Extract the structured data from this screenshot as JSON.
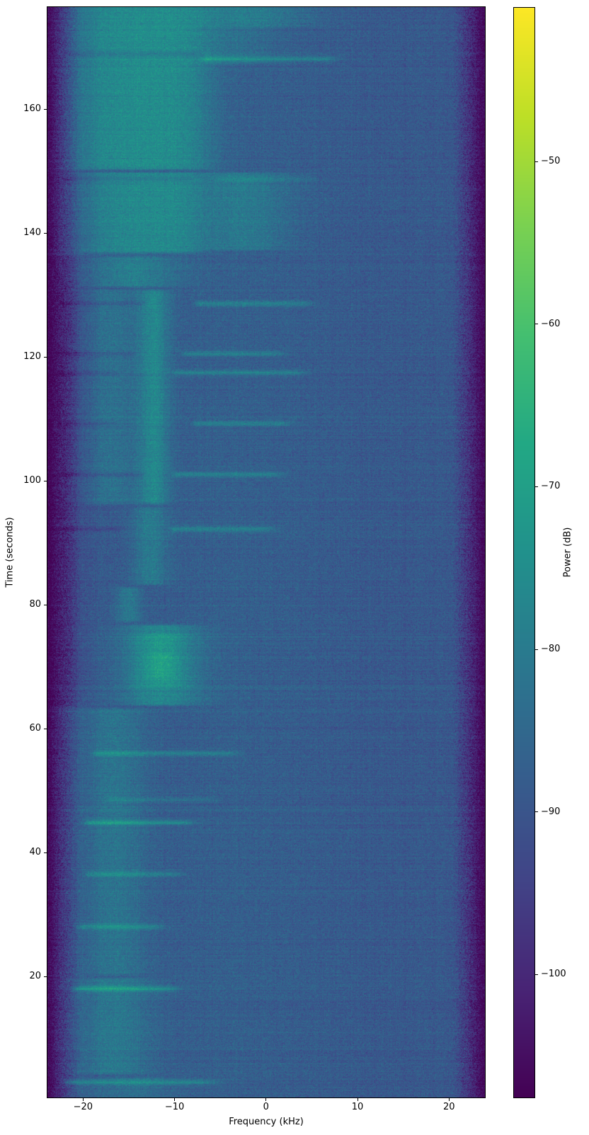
{
  "chart_data": {
    "type": "heatmap",
    "title": "",
    "xlabel": "Frequency (kHz)",
    "ylabel": "Time (seconds)",
    "colorbar_label": "Power (dB)",
    "x_range_khz": [
      -23.9,
      24.0
    ],
    "y_range_seconds": [
      0.3,
      176.6
    ],
    "color_range_db": [
      -107.6,
      -40.5
    ],
    "grid": false,
    "x_ticks": [
      {
        "v": -20,
        "label": "−20"
      },
      {
        "v": -10,
        "label": "−10"
      },
      {
        "v": 0,
        "label": "0"
      },
      {
        "v": 10,
        "label": "10"
      },
      {
        "v": 20,
        "label": "20"
      }
    ],
    "y_ticks": [
      {
        "v": 160,
        "label": "160"
      },
      {
        "v": 140,
        "label": "140"
      },
      {
        "v": 120,
        "label": "120"
      },
      {
        "v": 100,
        "label": "100"
      },
      {
        "v": 80,
        "label": "80"
      },
      {
        "v": 60,
        "label": "60"
      },
      {
        "v": 40,
        "label": "40"
      },
      {
        "v": 20,
        "label": "20"
      }
    ],
    "colorbar_ticks": [
      {
        "v": -50,
        "label": "−50"
      },
      {
        "v": -60,
        "label": "−60"
      },
      {
        "v": -70,
        "label": "−70"
      },
      {
        "v": -80,
        "label": "−80"
      },
      {
        "v": -90,
        "label": "−90"
      },
      {
        "v": -100,
        "label": "−100"
      }
    ],
    "colormap": {
      "name": "viridis",
      "stops": [
        [
          68,
          1,
          84
        ],
        [
          72,
          36,
          117
        ],
        [
          65,
          68,
          135
        ],
        [
          53,
          95,
          141
        ],
        [
          42,
          120,
          142
        ],
        [
          33,
          145,
          140
        ],
        [
          34,
          168,
          132
        ],
        [
          68,
          191,
          112
        ],
        [
          122,
          209,
          81
        ],
        [
          189,
          223,
          38
        ],
        [
          253,
          231,
          37
        ]
      ]
    },
    "background_model": {
      "base_db": -89,
      "bump": {
        "fc": -3,
        "fs": 11,
        "amp": 1.6
      },
      "edge": {
        "start_khz": 20.2,
        "width_khz": 3.4,
        "depth_db": 17
      },
      "noise_sigma": 2.6,
      "row_noise": 0.8,
      "col_noise": 0.45,
      "seed": 42
    },
    "bands": [
      {
        "t": [
          150,
          177
        ],
        "fc": -13.5,
        "fs": 7.5,
        "amp": 13,
        "p": 4
      },
      {
        "t": [
          167,
          177
        ],
        "fc": -3,
        "fs": 4,
        "amp": 4,
        "p": 2
      },
      {
        "t": [
          173,
          177
        ],
        "fc": 0,
        "fs": 6,
        "amp": 5,
        "p": 2
      },
      {
        "t": [
          136.5,
          150
        ],
        "fc": -13.5,
        "fs": 6.5,
        "amp": 12,
        "p": 4
      },
      {
        "t": [
          137,
          150
        ],
        "fc": -2.5,
        "fs": 5,
        "amp": 7,
        "p": 2
      },
      {
        "t": [
          131,
          136.5
        ],
        "fc": -14.5,
        "fs": 5,
        "amp": 9,
        "p": 2
      },
      {
        "t": [
          96,
          131
        ],
        "fc": -12.2,
        "fs": 1.7,
        "amp": 11,
        "p": 2
      },
      {
        "t": [
          96,
          131
        ],
        "fc": -16.8,
        "fs": 2.8,
        "amp": 6,
        "p": 2
      },
      {
        "t": [
          83,
          96
        ],
        "fc": -12.6,
        "fs": 1.9,
        "amp": 8,
        "p": 2
      },
      {
        "t": [
          77,
          83
        ],
        "fc": -15,
        "fs": 1.4,
        "amp": 8,
        "p": 2
      },
      {
        "t": [
          63.5,
          77
        ],
        "fc": -11.5,
        "fs": 4.4,
        "amp": 11,
        "p": 2
      },
      {
        "t": [
          66.5,
          75.5
        ],
        "fc": -11.5,
        "fs": 2.9,
        "amp": 5,
        "p": 2
      },
      {
        "t": [
          68,
          72.5
        ],
        "fc": -11.3,
        "fs": 1.6,
        "amp": 3,
        "p": 2
      },
      {
        "t": [
          20,
          63.5
        ],
        "fc": -16.5,
        "fs": 3.3,
        "amp": 7,
        "p": 2
      },
      {
        "t": [
          4,
          20
        ],
        "fc": -16.5,
        "fs": 3.9,
        "amp": 8,
        "p": 2
      },
      {
        "t": [
          0,
          4
        ],
        "fc": -15,
        "fs": 4.5,
        "amp": 5,
        "p": 2
      },
      {
        "t": [
          63.5,
          136.5
        ],
        "fc": -21.5,
        "fs": 2.0,
        "amp": -4,
        "p": 2
      }
    ],
    "events": [
      {
        "t": 168.9,
        "f": [
          -6.5,
          6.3
        ],
        "amp": 0,
        "dark": [
          -21,
          -7.5
        ],
        "damp": 5
      },
      {
        "t": 168.1,
        "f": [
          -6.5,
          6.3
        ],
        "amp": 9
      },
      {
        "t": 148.7,
        "f": [
          -5,
          4
        ],
        "amp": 4,
        "dark": [
          -21.5,
          -9
        ],
        "damp": 3.5
      },
      {
        "t": 128.6,
        "f": [
          -7.2,
          3.6
        ],
        "amp": 9,
        "dark": [
          -22,
          -14
        ],
        "damp": 4
      },
      {
        "t": 120.5,
        "f": [
          -8.6,
          0.5
        ],
        "amp": 8,
        "dark": [
          -22,
          -15
        ],
        "damp": 4
      },
      {
        "t": 117.4,
        "f": [
          -9.6,
          3.0
        ],
        "amp": 9,
        "dark": [
          -22,
          -16.8
        ],
        "damp": 4
      },
      {
        "t": 109.2,
        "f": [
          -7.5,
          1.2
        ],
        "amp": 8,
        "dark": [
          -22,
          -16.8
        ],
        "damp": 4
      },
      {
        "t": 101.0,
        "f": [
          -9.6,
          0.5
        ],
        "amp": 9,
        "dark": [
          -22,
          -14
        ],
        "damp": 4
      },
      {
        "t": 92.2,
        "f": [
          -9.9,
          -0.4
        ],
        "amp": 9,
        "dark": [
          -22,
          -16.5
        ],
        "damp": 4
      },
      {
        "t": 56.0,
        "f": [
          -18.4,
          -4.4
        ],
        "amp": 9
      },
      {
        "t": 48.5,
        "f": [
          -17,
          -7
        ],
        "amp": 5
      },
      {
        "t": 44.8,
        "f": [
          -19.2,
          -9.4
        ],
        "amp": 11
      },
      {
        "t": 36.5,
        "f": [
          -19.2,
          -10.5
        ],
        "amp": 8
      },
      {
        "t": 28.0,
        "f": [
          -20,
          -12.5
        ],
        "amp": 9
      },
      {
        "t": 18.0,
        "f": [
          -20.5,
          -11
        ],
        "amp": 11
      },
      {
        "t": 2.9,
        "f": [
          -21.5,
          -7.5
        ],
        "amp": 10,
        "tail": 2.5
      }
    ]
  }
}
